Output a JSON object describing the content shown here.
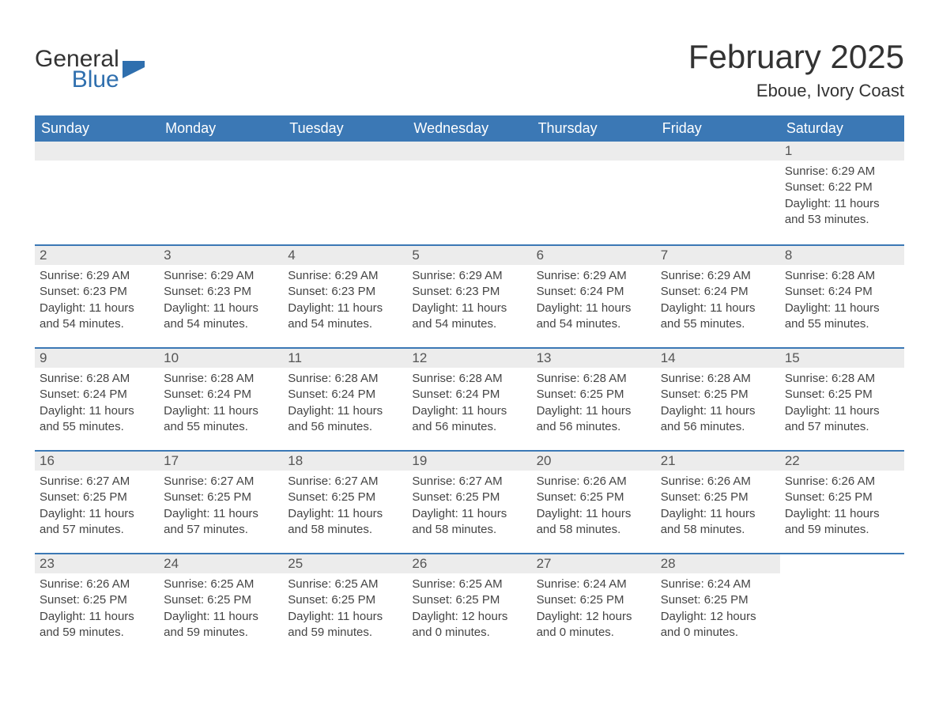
{
  "logo": {
    "text_general": "General",
    "text_blue": "Blue",
    "flag_color": "#2f6fae"
  },
  "header": {
    "month_title": "February 2025",
    "location": "Eboue, Ivory Coast"
  },
  "calendar": {
    "header_bg": "#3b78b5",
    "header_text_color": "#ffffff",
    "cell_bar_bg": "#ececec",
    "border_color": "#3b78b5",
    "weekdays": [
      "Sunday",
      "Monday",
      "Tuesday",
      "Wednesday",
      "Thursday",
      "Friday",
      "Saturday"
    ],
    "weeks": [
      [
        {
          "day": "",
          "sunrise": "",
          "sunset": "",
          "daylight": ""
        },
        {
          "day": "",
          "sunrise": "",
          "sunset": "",
          "daylight": ""
        },
        {
          "day": "",
          "sunrise": "",
          "sunset": "",
          "daylight": ""
        },
        {
          "day": "",
          "sunrise": "",
          "sunset": "",
          "daylight": ""
        },
        {
          "day": "",
          "sunrise": "",
          "sunset": "",
          "daylight": ""
        },
        {
          "day": "",
          "sunrise": "",
          "sunset": "",
          "daylight": ""
        },
        {
          "day": "1",
          "sunrise": "Sunrise: 6:29 AM",
          "sunset": "Sunset: 6:22 PM",
          "daylight": "Daylight: 11 hours and 53 minutes."
        }
      ],
      [
        {
          "day": "2",
          "sunrise": "Sunrise: 6:29 AM",
          "sunset": "Sunset: 6:23 PM",
          "daylight": "Daylight: 11 hours and 54 minutes."
        },
        {
          "day": "3",
          "sunrise": "Sunrise: 6:29 AM",
          "sunset": "Sunset: 6:23 PM",
          "daylight": "Daylight: 11 hours and 54 minutes."
        },
        {
          "day": "4",
          "sunrise": "Sunrise: 6:29 AM",
          "sunset": "Sunset: 6:23 PM",
          "daylight": "Daylight: 11 hours and 54 minutes."
        },
        {
          "day": "5",
          "sunrise": "Sunrise: 6:29 AM",
          "sunset": "Sunset: 6:23 PM",
          "daylight": "Daylight: 11 hours and 54 minutes."
        },
        {
          "day": "6",
          "sunrise": "Sunrise: 6:29 AM",
          "sunset": "Sunset: 6:24 PM",
          "daylight": "Daylight: 11 hours and 54 minutes."
        },
        {
          "day": "7",
          "sunrise": "Sunrise: 6:29 AM",
          "sunset": "Sunset: 6:24 PM",
          "daylight": "Daylight: 11 hours and 55 minutes."
        },
        {
          "day": "8",
          "sunrise": "Sunrise: 6:28 AM",
          "sunset": "Sunset: 6:24 PM",
          "daylight": "Daylight: 11 hours and 55 minutes."
        }
      ],
      [
        {
          "day": "9",
          "sunrise": "Sunrise: 6:28 AM",
          "sunset": "Sunset: 6:24 PM",
          "daylight": "Daylight: 11 hours and 55 minutes."
        },
        {
          "day": "10",
          "sunrise": "Sunrise: 6:28 AM",
          "sunset": "Sunset: 6:24 PM",
          "daylight": "Daylight: 11 hours and 55 minutes."
        },
        {
          "day": "11",
          "sunrise": "Sunrise: 6:28 AM",
          "sunset": "Sunset: 6:24 PM",
          "daylight": "Daylight: 11 hours and 56 minutes."
        },
        {
          "day": "12",
          "sunrise": "Sunrise: 6:28 AM",
          "sunset": "Sunset: 6:24 PM",
          "daylight": "Daylight: 11 hours and 56 minutes."
        },
        {
          "day": "13",
          "sunrise": "Sunrise: 6:28 AM",
          "sunset": "Sunset: 6:25 PM",
          "daylight": "Daylight: 11 hours and 56 minutes."
        },
        {
          "day": "14",
          "sunrise": "Sunrise: 6:28 AM",
          "sunset": "Sunset: 6:25 PM",
          "daylight": "Daylight: 11 hours and 56 minutes."
        },
        {
          "day": "15",
          "sunrise": "Sunrise: 6:28 AM",
          "sunset": "Sunset: 6:25 PM",
          "daylight": "Daylight: 11 hours and 57 minutes."
        }
      ],
      [
        {
          "day": "16",
          "sunrise": "Sunrise: 6:27 AM",
          "sunset": "Sunset: 6:25 PM",
          "daylight": "Daylight: 11 hours and 57 minutes."
        },
        {
          "day": "17",
          "sunrise": "Sunrise: 6:27 AM",
          "sunset": "Sunset: 6:25 PM",
          "daylight": "Daylight: 11 hours and 57 minutes."
        },
        {
          "day": "18",
          "sunrise": "Sunrise: 6:27 AM",
          "sunset": "Sunset: 6:25 PM",
          "daylight": "Daylight: 11 hours and 58 minutes."
        },
        {
          "day": "19",
          "sunrise": "Sunrise: 6:27 AM",
          "sunset": "Sunset: 6:25 PM",
          "daylight": "Daylight: 11 hours and 58 minutes."
        },
        {
          "day": "20",
          "sunrise": "Sunrise: 6:26 AM",
          "sunset": "Sunset: 6:25 PM",
          "daylight": "Daylight: 11 hours and 58 minutes."
        },
        {
          "day": "21",
          "sunrise": "Sunrise: 6:26 AM",
          "sunset": "Sunset: 6:25 PM",
          "daylight": "Daylight: 11 hours and 58 minutes."
        },
        {
          "day": "22",
          "sunrise": "Sunrise: 6:26 AM",
          "sunset": "Sunset: 6:25 PM",
          "daylight": "Daylight: 11 hours and 59 minutes."
        }
      ],
      [
        {
          "day": "23",
          "sunrise": "Sunrise: 6:26 AM",
          "sunset": "Sunset: 6:25 PM",
          "daylight": "Daylight: 11 hours and 59 minutes."
        },
        {
          "day": "24",
          "sunrise": "Sunrise: 6:25 AM",
          "sunset": "Sunset: 6:25 PM",
          "daylight": "Daylight: 11 hours and 59 minutes."
        },
        {
          "day": "25",
          "sunrise": "Sunrise: 6:25 AM",
          "sunset": "Sunset: 6:25 PM",
          "daylight": "Daylight: 11 hours and 59 minutes."
        },
        {
          "day": "26",
          "sunrise": "Sunrise: 6:25 AM",
          "sunset": "Sunset: 6:25 PM",
          "daylight": "Daylight: 12 hours and 0 minutes."
        },
        {
          "day": "27",
          "sunrise": "Sunrise: 6:24 AM",
          "sunset": "Sunset: 6:25 PM",
          "daylight": "Daylight: 12 hours and 0 minutes."
        },
        {
          "day": "28",
          "sunrise": "Sunrise: 6:24 AM",
          "sunset": "Sunset: 6:25 PM",
          "daylight": "Daylight: 12 hours and 0 minutes."
        },
        {
          "day": "",
          "sunrise": "",
          "sunset": "",
          "daylight": ""
        }
      ]
    ]
  }
}
